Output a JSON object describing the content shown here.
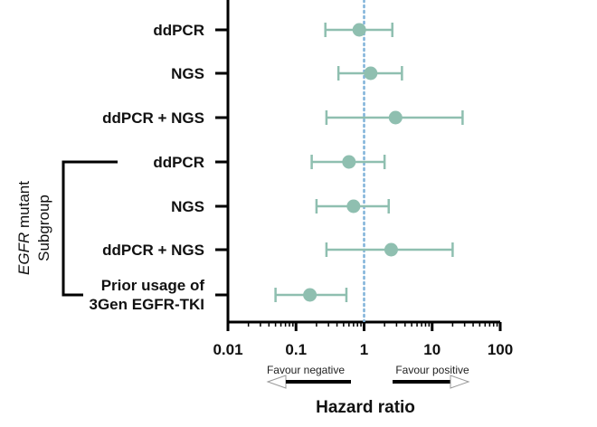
{
  "chart_data": {
    "type": "forest",
    "xlabel": "Hazard ratio",
    "x_scale": "log",
    "xlim": [
      0.01,
      100
    ],
    "xticks": [
      "0.01",
      "0.1",
      "1",
      "10",
      "100"
    ],
    "reference_line": 1,
    "marker_color": "#8fbfb0",
    "reference_color": "#7fb2d9",
    "group_label": {
      "italic": "EGFR",
      "rest": " mutant",
      "line2": "Subgroup"
    },
    "favour_left": "Favour negative",
    "favour_right": "Favour positive",
    "rows": [
      {
        "label": "ddPCR",
        "hr": 0.85,
        "lo": 0.27,
        "hi": 2.6,
        "group": false
      },
      {
        "label": "NGS",
        "hr": 1.25,
        "lo": 0.42,
        "hi": 3.6,
        "group": false
      },
      {
        "label": "ddPCR + NGS",
        "hr": 2.9,
        "lo": 0.28,
        "hi": 28,
        "group": false
      },
      {
        "label": "ddPCR",
        "hr": 0.6,
        "lo": 0.17,
        "hi": 2.0,
        "group": true
      },
      {
        "label": "NGS",
        "hr": 0.7,
        "lo": 0.2,
        "hi": 2.3,
        "group": true
      },
      {
        "label": "ddPCR + NGS",
        "hr": 2.5,
        "lo": 0.28,
        "hi": 20,
        "group": true
      },
      {
        "label": "Prior usage of",
        "label2": "3Gen EGFR-TKI",
        "hr": 0.16,
        "lo": 0.05,
        "hi": 0.55,
        "group": true
      }
    ]
  }
}
